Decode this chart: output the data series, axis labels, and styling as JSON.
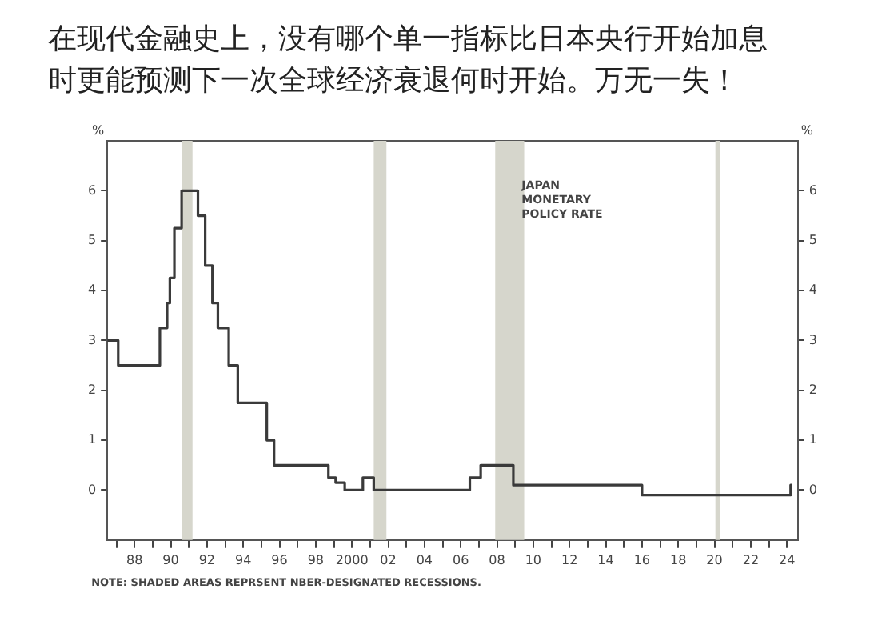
{
  "chart_data": {
    "type": "step",
    "title": "在现代金融史上，没有哪个单一指标比日本央行开始加息时更能预测下一次全球经济衰退何时开始。万无一失！",
    "ylabel": "%",
    "y2label": "%",
    "annotations": [
      "NOTE: SHADED AREAS REPRSENT NBER-DESIGNATED RECESSIONS."
    ],
    "series": [
      {
        "name": "JAPAN MONETARY POLICY RATE",
        "color": "#3a3a3a",
        "x": [
          1986.5,
          1987.1,
          1989.4,
          1989.8,
          1989.95,
          1990.2,
          1990.6,
          1991.5,
          1991.9,
          1992.3,
          1992.6,
          1993.2,
          1993.7,
          1995.3,
          1995.7,
          1998.7,
          1999.1,
          1999.6,
          2000.6,
          2001.2,
          2006.5,
          2007.1,
          2008.9,
          2016.0,
          2024.2,
          2024.3
        ],
        "values": [
          3.0,
          2.5,
          3.25,
          3.75,
          4.25,
          5.25,
          6.0,
          5.5,
          4.5,
          3.75,
          3.25,
          2.5,
          1.75,
          1.0,
          0.5,
          0.25,
          0.15,
          0.0,
          0.25,
          0.0,
          0.25,
          0.5,
          0.1,
          -0.1,
          0.1,
          0.1
        ]
      }
    ],
    "bands": [
      {
        "axis": "x",
        "from": 1990.6,
        "to": 1991.2,
        "color": "#d6d6cc"
      },
      {
        "axis": "x",
        "from": 2001.2,
        "to": 2001.9,
        "color": "#d6d6cc"
      },
      {
        "axis": "x",
        "from": 2007.9,
        "to": 2009.5,
        "color": "#d6d6cc"
      },
      {
        "axis": "x",
        "from": 2020.05,
        "to": 2020.3,
        "color": "#d6d6cc"
      }
    ],
    "xlim": [
      1986.5,
      2024.6
    ],
    "xticks": [
      {
        "value": 1987,
        "label": null
      },
      {
        "value": 1988,
        "label": "88"
      },
      {
        "value": 1989,
        "label": null
      },
      {
        "value": 1990,
        "label": "90"
      },
      {
        "value": 1991,
        "label": null
      },
      {
        "value": 1992,
        "label": "92"
      },
      {
        "value": 1993,
        "label": null
      },
      {
        "value": 1994,
        "label": "94"
      },
      {
        "value": 1995,
        "label": null
      },
      {
        "value": 1996,
        "label": "96"
      },
      {
        "value": 1997,
        "label": null
      },
      {
        "value": 1998,
        "label": "98"
      },
      {
        "value": 1999,
        "label": null
      },
      2000,
      {
        "value": 2001,
        "label": null
      },
      {
        "value": 2002,
        "label": "02"
      },
      {
        "value": 2003,
        "label": null
      },
      {
        "value": 2004,
        "label": "04"
      },
      {
        "value": 2005,
        "label": null
      },
      {
        "value": 2006,
        "label": "06"
      },
      {
        "value": 2007,
        "label": null
      },
      {
        "value": 2008,
        "label": "08"
      },
      {
        "value": 2009,
        "label": null
      },
      {
        "value": 2010,
        "label": "10"
      },
      {
        "value": 2011,
        "label": null
      },
      {
        "value": 2012,
        "label": "12"
      },
      {
        "value": 2013,
        "label": null
      },
      {
        "value": 2014,
        "label": "14"
      },
      {
        "value": 2015,
        "label": null
      },
      {
        "value": 2016,
        "label": "16"
      },
      {
        "value": 2017,
        "label": null
      },
      {
        "value": 2018,
        "label": "18"
      },
      {
        "value": 2019,
        "label": null
      },
      {
        "value": 2020,
        "label": "20"
      },
      {
        "value": 2021,
        "label": null
      },
      {
        "value": 2022,
        "label": "22"
      },
      {
        "value": 2023,
        "label": null
      },
      {
        "value": 2024,
        "label": "24"
      }
    ],
    "ylim": [
      -1,
      7
    ],
    "yticks": [
      0,
      1,
      2,
      3,
      4,
      5,
      6
    ],
    "y2lim": [
      -1,
      7
    ],
    "y2ticks": [
      0,
      1,
      2,
      3,
      4,
      5,
      6
    ],
    "grid": false,
    "legend": false,
    "marker": "none",
    "line_style": "solid"
  }
}
